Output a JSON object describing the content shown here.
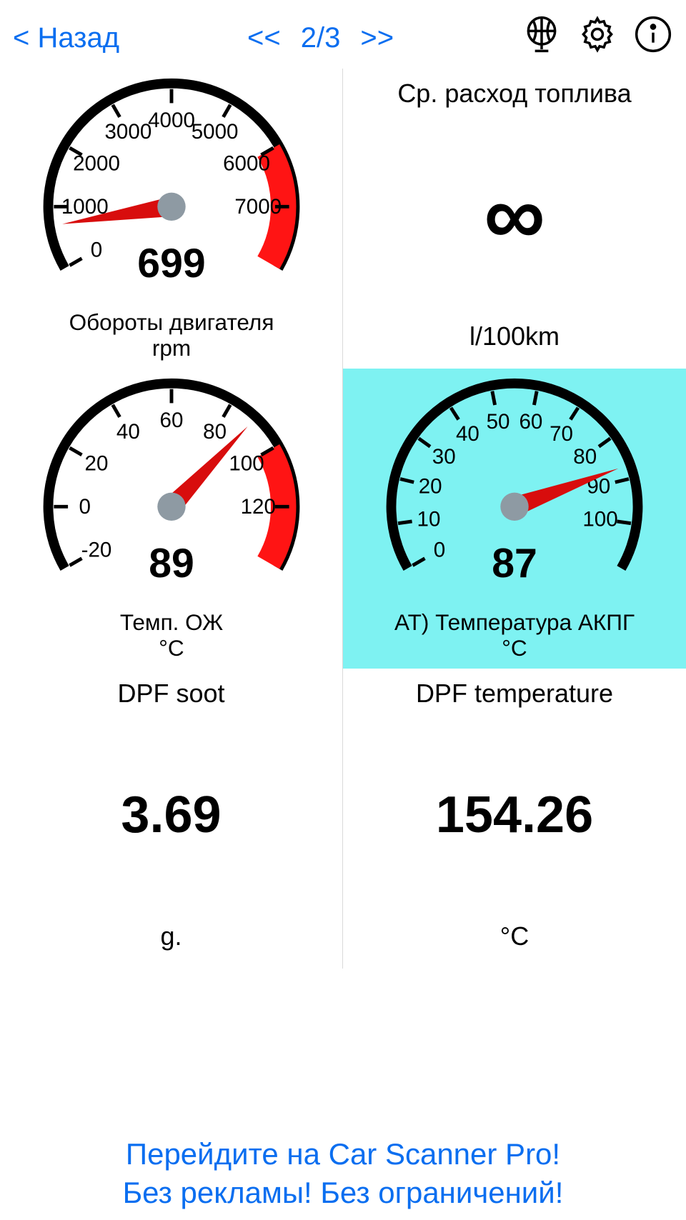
{
  "header": {
    "back_label": "< Назад",
    "prev_label": "<<",
    "page_indicator": "2/3",
    "next_label": ">>"
  },
  "colors": {
    "link": "#0a6ef0",
    "needle": "#d80d0d",
    "redzone": "#ff1414",
    "hub": "#8e9aa3",
    "ring": "#000000",
    "highlight_bg": "#7ef2f2"
  },
  "gauges": {
    "rpm": {
      "type": "gauge",
      "title": "Обороты двигателя",
      "unit": "rpm",
      "value_text": "699",
      "min": 0,
      "max": 8000,
      "start_deg": 210,
      "end_deg": -30,
      "ticks": [
        0,
        1000,
        2000,
        3000,
        4000,
        5000,
        6000,
        7000
      ],
      "redzone_from": 6000,
      "redzone_to": 8000,
      "needle_value": 699
    },
    "coolant": {
      "type": "gauge",
      "title": "Темп. ОЖ",
      "unit": "°C",
      "value_text": "89",
      "min": -20,
      "max": 140,
      "start_deg": 210,
      "end_deg": -30,
      "ticks": [
        -20,
        0,
        20,
        40,
        60,
        80,
        100,
        120
      ],
      "redzone_from": 100,
      "redzone_to": 140,
      "needle_value": 89
    },
    "atf": {
      "type": "gauge",
      "title": "AT) Температура АКПГ",
      "unit": "°C",
      "value_text": "87",
      "min": 0,
      "max": 110,
      "start_deg": 210,
      "end_deg": -30,
      "ticks": [
        0,
        10,
        20,
        30,
        40,
        50,
        60,
        70,
        80,
        90,
        100
      ],
      "redzone_from": null,
      "redzone_to": null,
      "needle_value": 87,
      "highlight": true
    }
  },
  "digitals": {
    "fuel": {
      "title": "Ср. расход топлива",
      "value": "∞",
      "unit": "l/100km"
    },
    "dpf_soot": {
      "title": "DPF soot",
      "value": "3.69",
      "unit": "g."
    },
    "dpf_temp": {
      "title": "DPF temperature",
      "value": "154.26",
      "unit": "°C"
    }
  },
  "promo": {
    "line1": "Перейдите на Car Scanner Pro!",
    "line2": "Без рекламы! Без ограничений!"
  }
}
